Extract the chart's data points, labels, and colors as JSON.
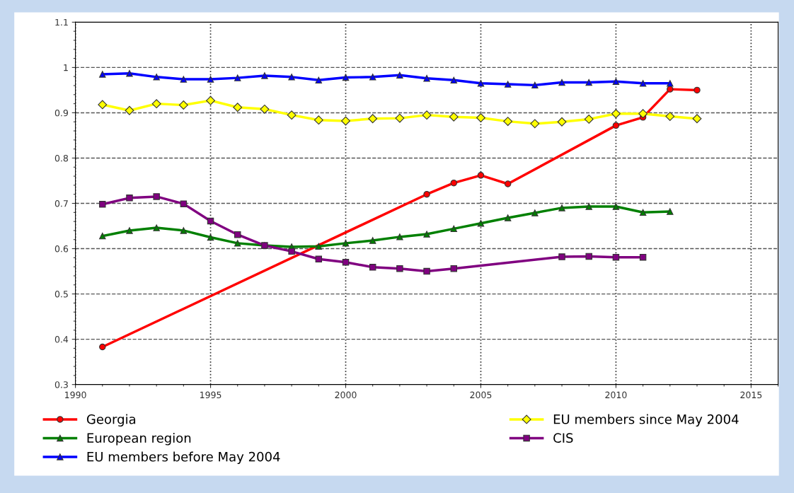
{
  "chart_data": {
    "type": "line",
    "xlim": [
      1990,
      2016
    ],
    "xticks": [
      1990,
      1995,
      2000,
      2005,
      2010,
      2015
    ],
    "ylim": [
      0.3,
      1.1
    ],
    "yticks": [
      0.3,
      0.4,
      0.5,
      0.6,
      0.7,
      0.8,
      0.9,
      1,
      1.1
    ],
    "grid": true,
    "legend": "bottom",
    "series": [
      {
        "name": "Georgia",
        "color": "#ff0000",
        "marker": "circle",
        "x": [
          1991,
          2003,
          2004,
          2005,
          2006,
          2010,
          2011,
          2012,
          2013
        ],
        "values": [
          0.383,
          0.72,
          0.745,
          0.762,
          0.743,
          0.872,
          0.89,
          0.952,
          0.95
        ]
      },
      {
        "name": "European region",
        "color": "#008000",
        "marker": "triangle",
        "x": [
          1991,
          1992,
          1993,
          1994,
          1995,
          1996,
          1997,
          1998,
          1999,
          2000,
          2001,
          2002,
          2003,
          2004,
          2005,
          2006,
          2007,
          2008,
          2009,
          2010,
          2011,
          2012
        ],
        "values": [
          0.628,
          0.64,
          0.646,
          0.64,
          0.625,
          0.612,
          0.607,
          0.604,
          0.605,
          0.612,
          0.618,
          0.626,
          0.632,
          0.644,
          0.656,
          0.668,
          0.679,
          0.69,
          0.693,
          0.693,
          0.68,
          0.682
        ]
      },
      {
        "name": "EU members before May 2004",
        "color": "#0000ff",
        "marker": "triangle",
        "x": [
          1991,
          1992,
          1993,
          1994,
          1995,
          1996,
          1997,
          1998,
          1999,
          2000,
          2001,
          2002,
          2003,
          2004,
          2005,
          2006,
          2007,
          2008,
          2009,
          2010,
          2011,
          2012
        ],
        "values": [
          0.985,
          0.987,
          0.979,
          0.974,
          0.974,
          0.977,
          0.982,
          0.979,
          0.972,
          0.978,
          0.979,
          0.983,
          0.976,
          0.972,
          0.965,
          0.963,
          0.961,
          0.967,
          0.967,
          0.969,
          0.965,
          0.965
        ]
      },
      {
        "name": "EU members since May 2004",
        "color": "#ffff00",
        "marker": "diamond",
        "x": [
          1991,
          1992,
          1993,
          1994,
          1995,
          1996,
          1997,
          1998,
          1999,
          2000,
          2001,
          2002,
          2003,
          2004,
          2005,
          2006,
          2007,
          2008,
          2009,
          2010,
          2011,
          2012,
          2013
        ],
        "values": [
          0.918,
          0.905,
          0.92,
          0.917,
          0.927,
          0.912,
          0.908,
          0.895,
          0.884,
          0.882,
          0.887,
          0.888,
          0.895,
          0.891,
          0.889,
          0.881,
          0.876,
          0.88,
          0.886,
          0.898,
          0.898,
          0.892,
          0.887
        ]
      },
      {
        "name": "CIS",
        "color": "#800080",
        "marker": "square",
        "x": [
          1991,
          1992,
          1993,
          1994,
          1995,
          1996,
          1997,
          1998,
          1999,
          2000,
          2001,
          2002,
          2003,
          2004,
          2008,
          2009,
          2010,
          2011
        ],
        "values": [
          0.698,
          0.712,
          0.715,
          0.699,
          0.661,
          0.631,
          0.607,
          0.594,
          0.577,
          0.57,
          0.559,
          0.556,
          0.55,
          0.556,
          0.582,
          0.583,
          0.581,
          0.581
        ]
      }
    ]
  }
}
